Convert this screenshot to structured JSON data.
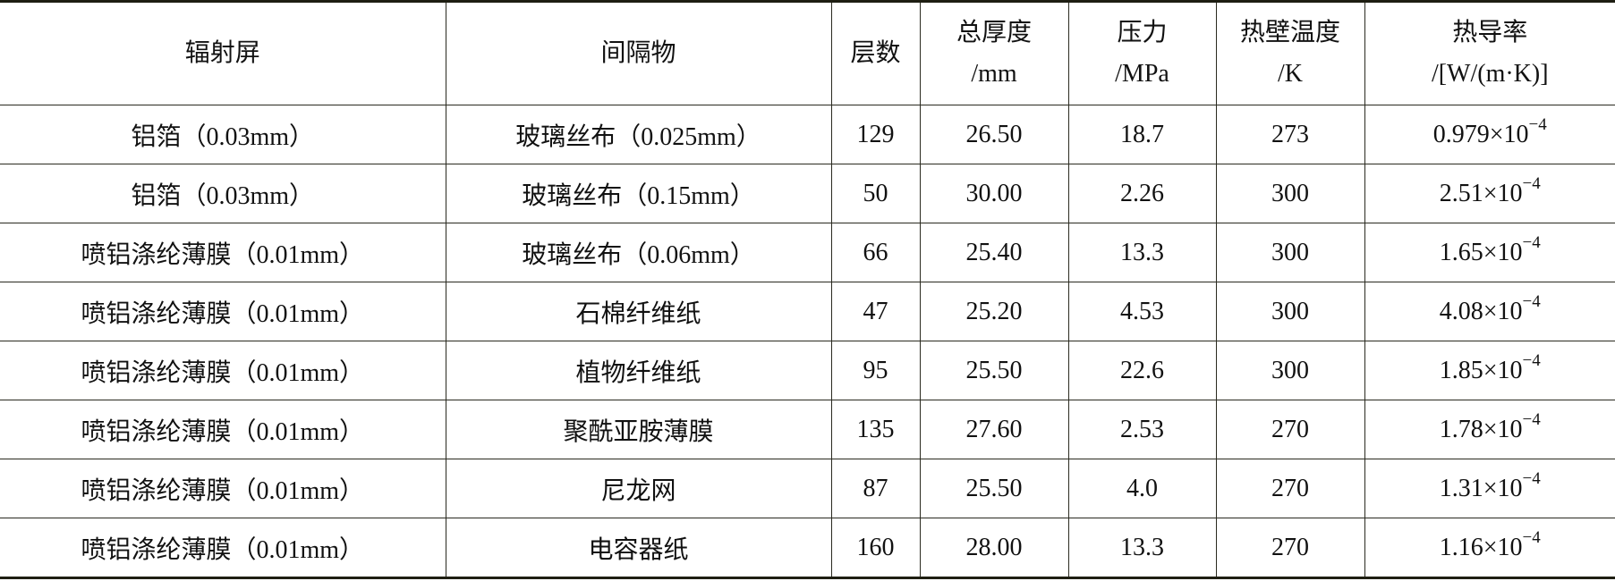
{
  "headers": [
    {
      "line1": "辐射屏",
      "line2": ""
    },
    {
      "line1": "间隔物",
      "line2": ""
    },
    {
      "line1": "层数",
      "line2": ""
    },
    {
      "line1": "总厚度",
      "line2": "/mm"
    },
    {
      "line1": "压力",
      "line2": "/MPa"
    },
    {
      "line1": "热壁温度",
      "line2": "/K"
    },
    {
      "line1": "热导率",
      "line2": "/[W/(m·K)]"
    }
  ],
  "rows": [
    {
      "shield": "铝箔（0.03mm）",
      "spacer": "玻璃丝布（0.025mm）",
      "layers": "129",
      "thickness": "26.50",
      "pressure": "18.7",
      "temp": "273",
      "k_mantissa": "0.979×10",
      "k_exp": "−4"
    },
    {
      "shield": "铝箔（0.03mm）",
      "spacer": "玻璃丝布（0.15mm）",
      "layers": "50",
      "thickness": "30.00",
      "pressure": "2.26",
      "temp": "300",
      "k_mantissa": "2.51×10",
      "k_exp": "−4"
    },
    {
      "shield": "喷铝涤纶薄膜（0.01mm）",
      "spacer": "玻璃丝布（0.06mm）",
      "layers": "66",
      "thickness": "25.40",
      "pressure": "13.3",
      "temp": "300",
      "k_mantissa": "1.65×10",
      "k_exp": "−4"
    },
    {
      "shield": "喷铝涤纶薄膜（0.01mm）",
      "spacer": "石棉纤维纸",
      "layers": "47",
      "thickness": "25.20",
      "pressure": "4.53",
      "temp": "300",
      "k_mantissa": "4.08×10",
      "k_exp": "−4"
    },
    {
      "shield": "喷铝涤纶薄膜（0.01mm）",
      "spacer": "植物纤维纸",
      "layers": "95",
      "thickness": "25.50",
      "pressure": "22.6",
      "temp": "300",
      "k_mantissa": "1.85×10",
      "k_exp": "−4"
    },
    {
      "shield": "喷铝涤纶薄膜（0.01mm）",
      "spacer": "聚酰亚胺薄膜",
      "layers": "135",
      "thickness": "27.60",
      "pressure": "2.53",
      "temp": "270",
      "k_mantissa": "1.78×10",
      "k_exp": "−4"
    },
    {
      "shield": "喷铝涤纶薄膜（0.01mm）",
      "spacer": "尼龙网",
      "layers": "87",
      "thickness": "25.50",
      "pressure": "4.0",
      "temp": "270",
      "k_mantissa": "1.31×10",
      "k_exp": "−4"
    },
    {
      "shield": "喷铝涤纶薄膜（0.01mm）",
      "spacer": "电容器纸",
      "layers": "160",
      "thickness": "28.00",
      "pressure": "13.3",
      "temp": "270",
      "k_mantissa": "1.16×10",
      "k_exp": "−4"
    }
  ]
}
